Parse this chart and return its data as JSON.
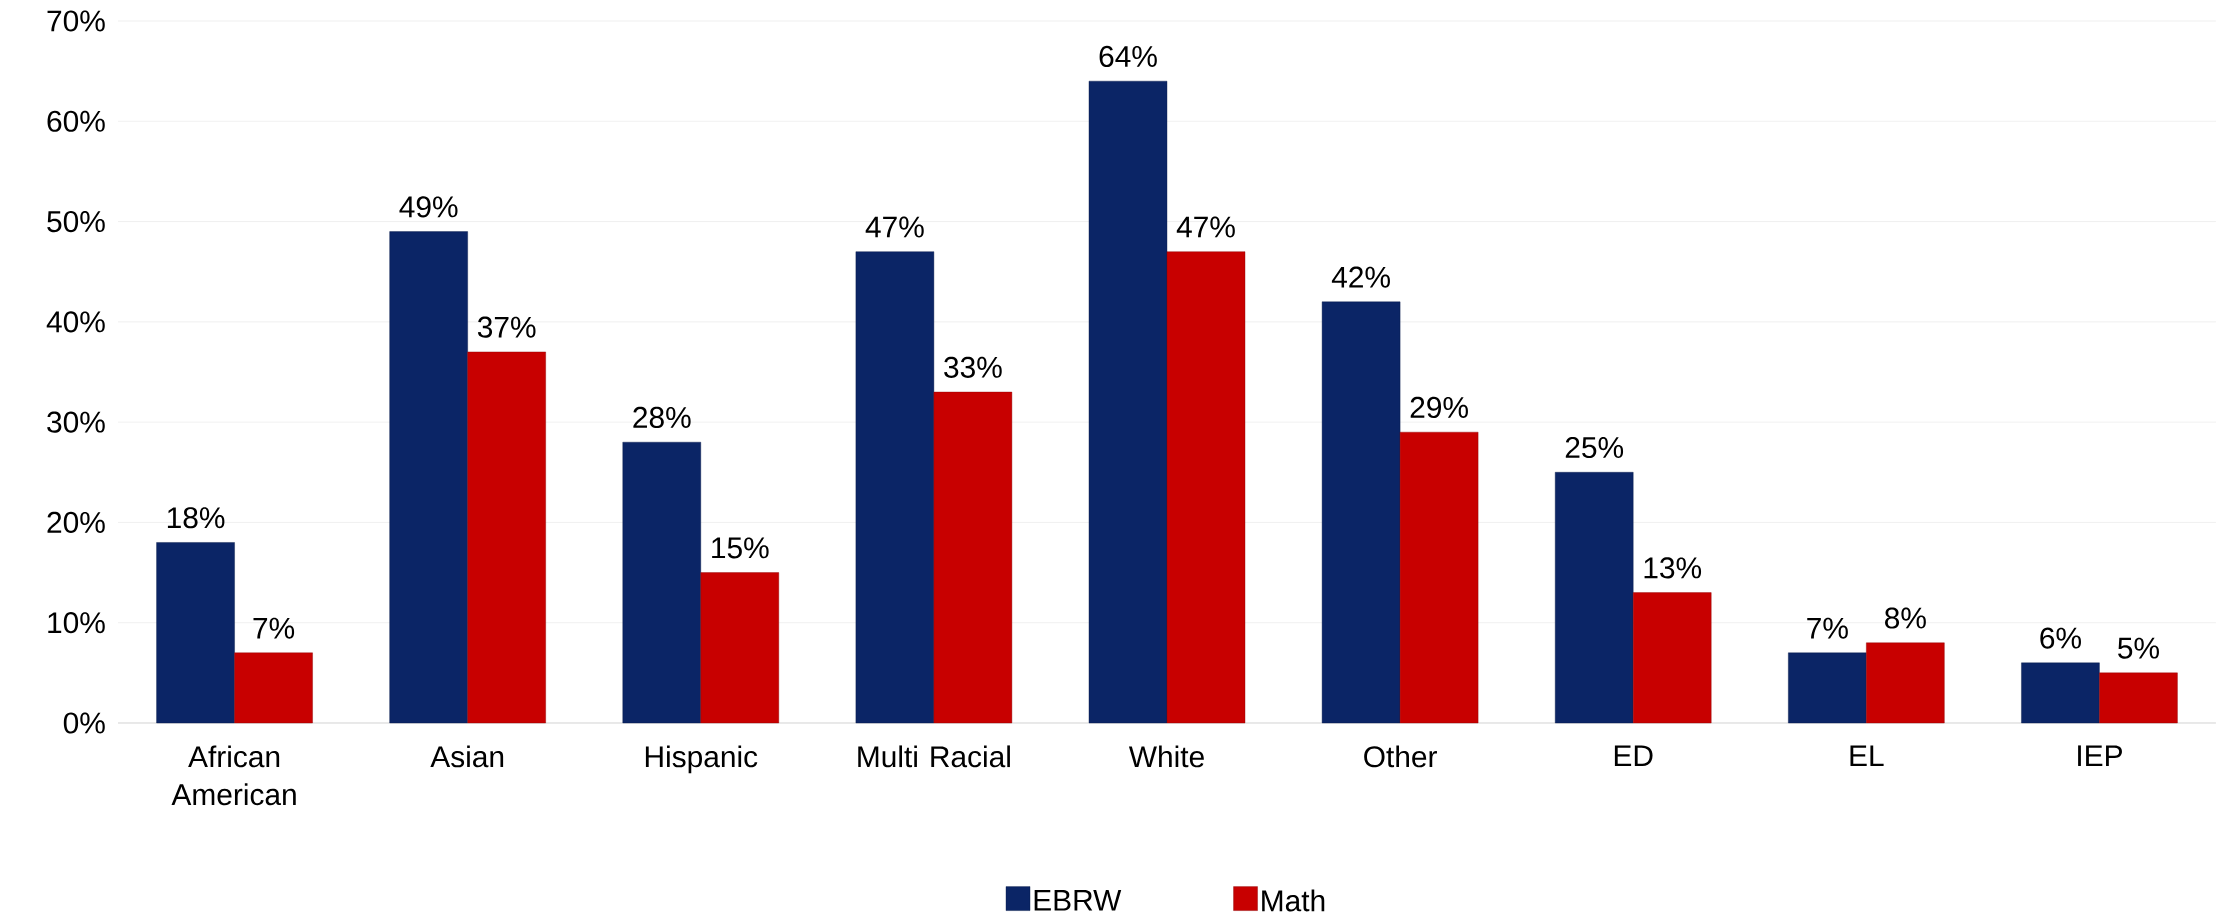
{
  "chart_data": {
    "type": "bar",
    "categories": [
      "African American",
      "Asian",
      "Hispanic",
      "Multi Racial",
      "White",
      "Other",
      "ED",
      "EL",
      "IEP"
    ],
    "series": [
      {
        "name": "EBRW",
        "color": "#0b2566",
        "values": [
          18,
          49,
          28,
          47,
          64,
          42,
          25,
          7,
          6
        ],
        "value_labels": [
          "18%",
          "49%",
          "28%",
          "47%",
          "64%",
          "42%",
          "25%",
          "7%",
          "6%"
        ]
      },
      {
        "name": "Math",
        "color": "#c80000",
        "values": [
          7,
          37,
          15,
          33,
          47,
          29,
          13,
          8,
          5
        ],
        "value_labels": [
          "7%",
          "37%",
          "15%",
          "33%",
          "47%",
          "29%",
          "13%",
          "8%",
          "5%"
        ]
      }
    ],
    "ylim": [
      0,
      70
    ],
    "yticks": [
      {
        "value": 0,
        "label": "0%"
      },
      {
        "value": 10,
        "label": "10%"
      },
      {
        "value": 20,
        "label": "20%"
      },
      {
        "value": 30,
        "label": "30%"
      },
      {
        "value": 40,
        "label": "40%"
      },
      {
        "value": 50,
        "label": "50%"
      },
      {
        "value": 60,
        "label": "60%"
      },
      {
        "value": 70,
        "label": "70%"
      }
    ],
    "grid": "y",
    "legend": "bottom"
  }
}
